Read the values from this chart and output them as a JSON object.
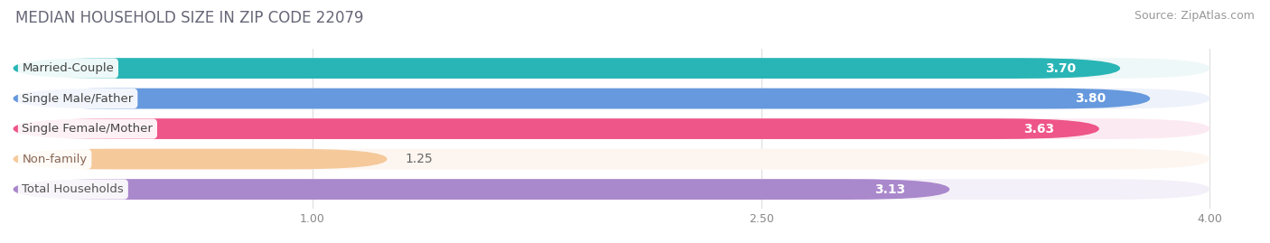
{
  "title": "MEDIAN HOUSEHOLD SIZE IN ZIP CODE 22079",
  "source": "Source: ZipAtlas.com",
  "categories": [
    "Married-Couple",
    "Single Male/Father",
    "Single Female/Mother",
    "Non-family",
    "Total Households"
  ],
  "values": [
    3.7,
    3.8,
    3.63,
    1.25,
    3.13
  ],
  "bar_colors": [
    "#29b5b5",
    "#6699dd",
    "#ee5588",
    "#f5c99a",
    "#aa88cc"
  ],
  "bar_bg_colors": [
    "#eff8f8",
    "#eef2fa",
    "#fceaf2",
    "#fdf6f0",
    "#f4f0f9"
  ],
  "label_text_colors": [
    "#444444",
    "#444444",
    "#444444",
    "#886655",
    "#555555"
  ],
  "xlim": [
    0,
    4.0
  ],
  "xticks": [
    1.0,
    2.5,
    4.0
  ],
  "title_fontsize": 12,
  "source_fontsize": 9,
  "label_fontsize": 9.5,
  "value_fontsize": 10,
  "background_color": "#ffffff"
}
